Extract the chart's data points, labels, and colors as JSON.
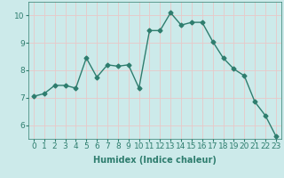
{
  "title": "",
  "xlabel": "Humidex (Indice chaleur)",
  "x": [
    0,
    1,
    2,
    3,
    4,
    5,
    6,
    7,
    8,
    9,
    10,
    11,
    12,
    13,
    14,
    15,
    16,
    17,
    18,
    19,
    20,
    21,
    22,
    23
  ],
  "y": [
    7.05,
    7.15,
    7.45,
    7.45,
    7.35,
    8.45,
    7.75,
    8.2,
    8.15,
    8.2,
    7.35,
    9.45,
    9.45,
    10.1,
    9.65,
    9.75,
    9.75,
    9.05,
    8.45,
    8.05,
    7.8,
    6.85,
    6.35,
    5.6
  ],
  "line_color": "#2e7d6e",
  "marker": "D",
  "marker_size": 2.5,
  "bg_color": "#cceaea",
  "grid_color": "#e8c8c8",
  "ylim": [
    5.5,
    10.5
  ],
  "xlim": [
    -0.5,
    23.5
  ],
  "yticks": [
    6,
    7,
    8,
    9,
    10
  ],
  "xticks": [
    0,
    1,
    2,
    3,
    4,
    5,
    6,
    7,
    8,
    9,
    10,
    11,
    12,
    13,
    14,
    15,
    16,
    17,
    18,
    19,
    20,
    21,
    22,
    23
  ],
  "linewidth": 1.0,
  "fontsize_label": 7,
  "fontsize_tick": 6.5
}
